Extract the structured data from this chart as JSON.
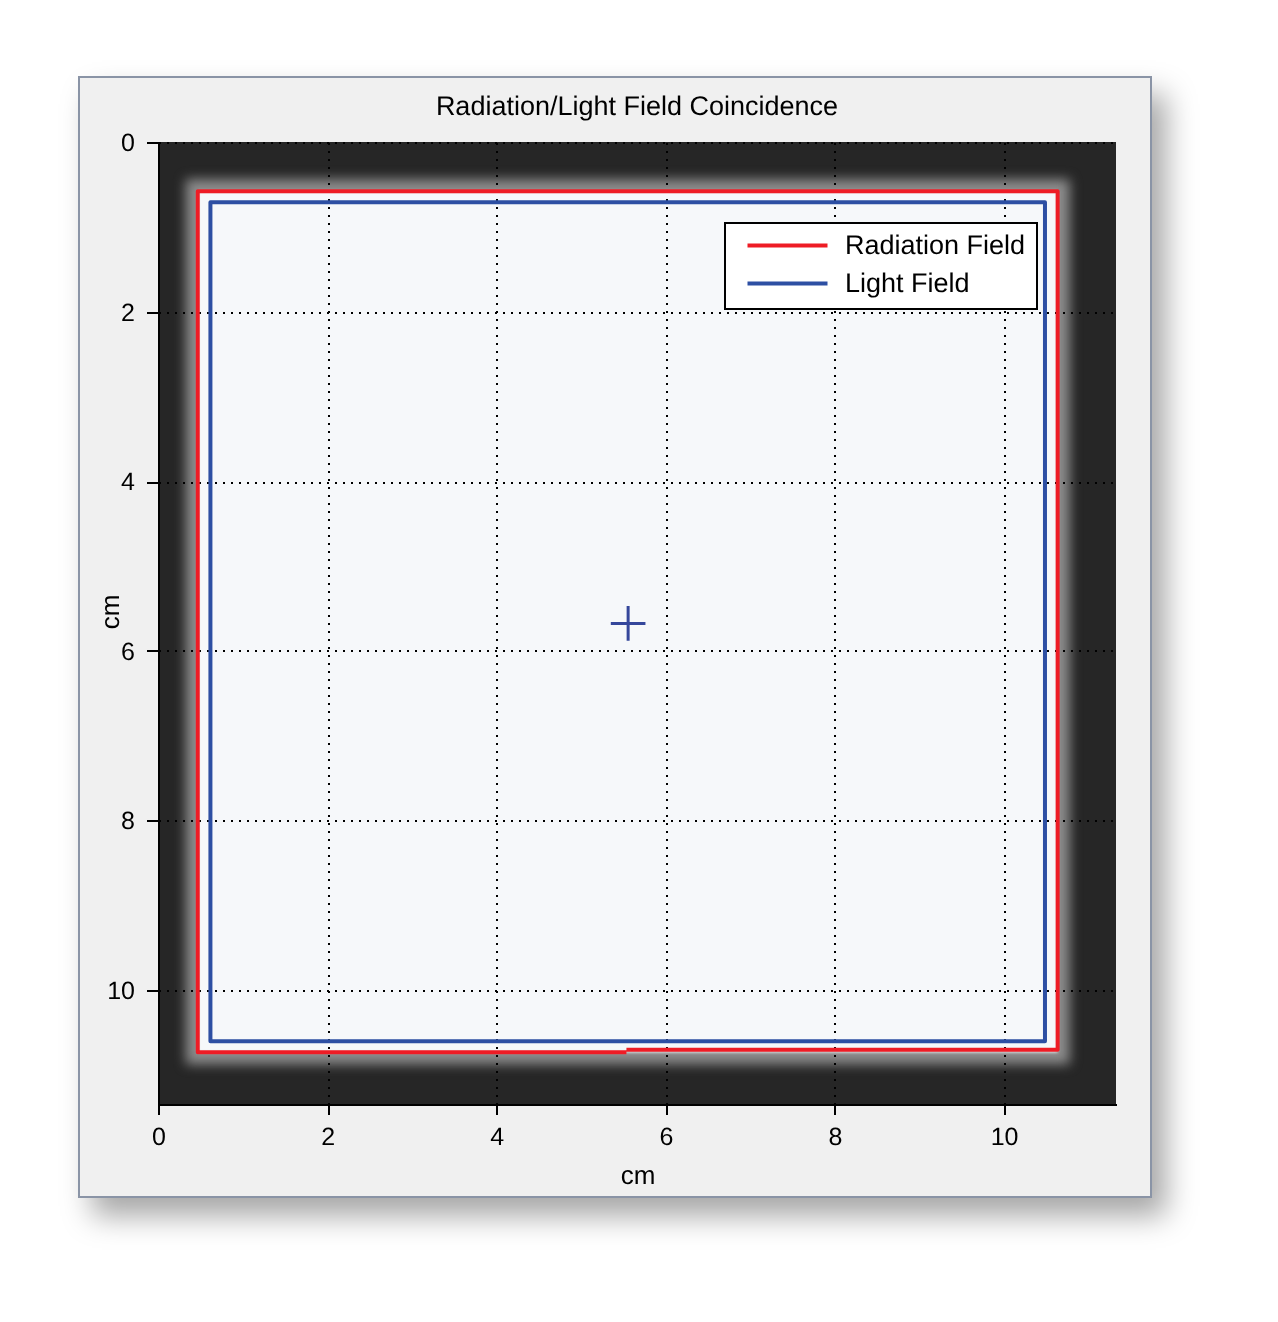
{
  "chart_data": {
    "type": "line",
    "title": "Radiation/Light Field Coincidence",
    "xlabel": "cm",
    "ylabel": "cm",
    "xlim": [
      0,
      11.33
    ],
    "ylim": [
      11.35,
      0
    ],
    "xticks": [
      0,
      2,
      4,
      6,
      8,
      10
    ],
    "yticks": [
      0,
      2,
      4,
      6,
      8,
      10
    ],
    "grid": true,
    "legend": "top right",
    "line_style": "solid",
    "series": [
      {
        "name": "Radiation Field",
        "color": "#ee1c25",
        "x": [
          5.54,
          10.64,
          10.64,
          0.47,
          0.47,
          5.54
        ],
        "values": [
          10.71,
          10.71,
          0.58,
          0.58,
          10.74,
          10.74
        ]
      },
      {
        "name": "Light Field",
        "color": "#2d4fa3",
        "x": [
          5.54,
          10.49,
          10.49,
          0.62,
          0.62,
          6.0
        ],
        "values": [
          10.61,
          10.61,
          0.71,
          0.71,
          10.61,
          10.61
        ]
      },
      {
        "type": "scatter",
        "marker": "cross",
        "color": "#35479b",
        "x": [
          5.56
        ],
        "values": [
          5.68
        ]
      }
    ]
  }
}
